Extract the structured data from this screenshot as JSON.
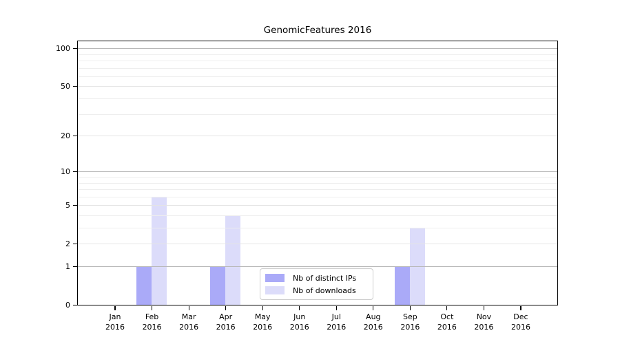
{
  "chart_data": {
    "type": "bar",
    "title": "GenomicFeatures 2016",
    "year_label": "2016",
    "categories": [
      "Jan",
      "Feb",
      "Mar",
      "Apr",
      "May",
      "Jun",
      "Jul",
      "Aug",
      "Sep",
      "Oct",
      "Nov",
      "Dec"
    ],
    "series": [
      {
        "name": "Nb of distinct IPs",
        "color": "#aaaaf8",
        "values": [
          0,
          1,
          0,
          1,
          0,
          0,
          0,
          0,
          1,
          0,
          0,
          0
        ]
      },
      {
        "name": "Nb of downloads",
        "color": "#dcdcfa",
        "values": [
          0,
          6,
          0,
          4,
          0,
          0,
          0,
          0,
          3,
          0,
          0,
          0
        ]
      }
    ],
    "y_axis": {
      "scale": "log1p",
      "ticks": [
        0,
        1,
        2,
        5,
        10,
        20,
        50,
        100
      ],
      "minor_gridlines": [
        3,
        4,
        6,
        7,
        8,
        9,
        30,
        40,
        60,
        70,
        80,
        90
      ],
      "decade_ticks": [
        1,
        10,
        100
      ],
      "ylim": [
        0,
        115
      ]
    },
    "grid": "horizontal",
    "legend_position": "inside-bottom-center",
    "colors": {
      "decade_gridline": "#b8b8b8",
      "labeled_gridline": "#e4e4e4",
      "minor_gridline": "#eeeeee",
      "axis": "#000000",
      "background": "#ffffff"
    }
  }
}
